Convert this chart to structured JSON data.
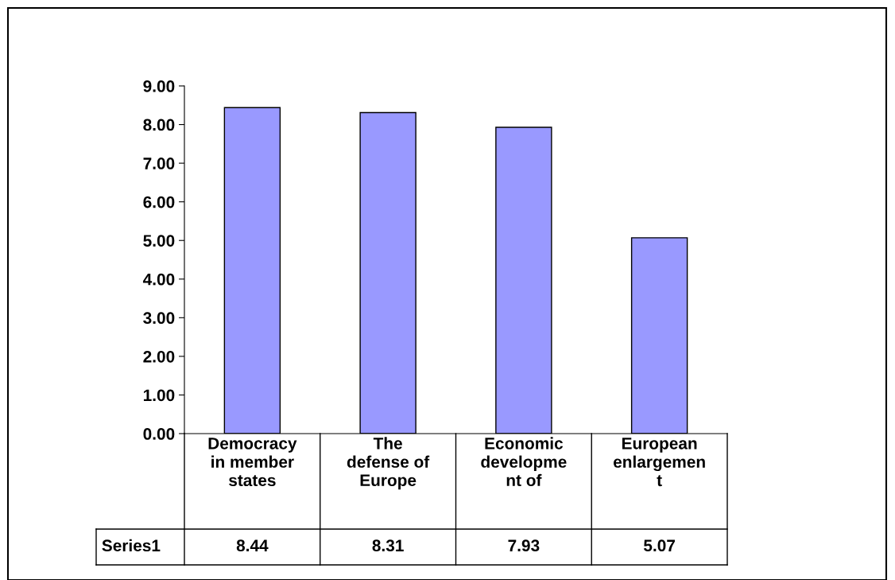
{
  "chart_data": {
    "type": "bar",
    "categories": [
      "Democracy\nin member\nstates",
      "The\ndefense of\nEurope",
      "Economic\ndevelopme\nnt of",
      "European\nenlargemen\nt"
    ],
    "series": [
      {
        "name": "Series1",
        "color": "#9999ff",
        "values": [
          8.44,
          8.31,
          7.93,
          5.07
        ]
      }
    ],
    "ylim": [
      0,
      9
    ],
    "yticks": [
      {
        "value": 0,
        "label": "0.00"
      },
      {
        "value": 1,
        "label": "1.00"
      },
      {
        "value": 2,
        "label": "2.00"
      },
      {
        "value": 3,
        "label": "3.00"
      },
      {
        "value": 4,
        "label": "4.00"
      },
      {
        "value": 5,
        "label": "5.00"
      },
      {
        "value": 6,
        "label": "6.00"
      },
      {
        "value": 7,
        "label": "7.00"
      },
      {
        "value": 8,
        "label": "8.00"
      },
      {
        "value": 9,
        "label": "9.00"
      }
    ],
    "data_labels": true,
    "grid": false,
    "legend": "bottom"
  }
}
